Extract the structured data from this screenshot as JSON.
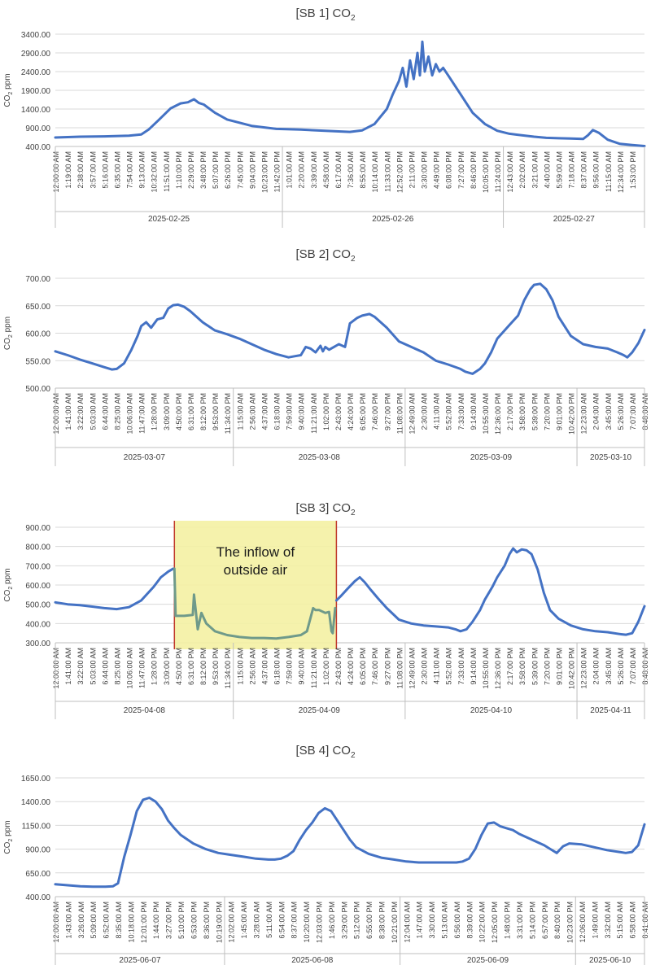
{
  "chart_data": [
    {
      "type": "line",
      "id": "sb1",
      "title_prefix": "[SB 1] CO",
      "title_sub": "2",
      "ylabel_prefix": "CO",
      "ylabel_sub": "2",
      "ylabel_suffix": " ppm",
      "ylim": [
        400,
        3400
      ],
      "yticks": [
        "3400.00",
        "2900.00",
        "2400.00",
        "1900.00",
        "1400.00",
        "900.00",
        "400.00"
      ],
      "ytick_values": [
        3400,
        2900,
        2400,
        1900,
        1400,
        900,
        400
      ],
      "xticks": [
        "12:00:00 AM",
        "1:19:00 AM",
        "2:38:00 AM",
        "3:57:00 AM",
        "5:16:00 AM",
        "6:35:00 AM",
        "7:54:00 AM",
        "9:13:00 AM",
        "10:32:00 AM",
        "11:51:00 AM",
        "1:10:00 PM",
        "2:29:00 PM",
        "3:48:00 PM",
        "5:07:00 PM",
        "6:26:00 PM",
        "7:45:00 PM",
        "9:04:00 PM",
        "10:23:00 PM",
        "11:42:00 PM",
        "1:01:00 AM",
        "2:20:00 AM",
        "3:39:00 AM",
        "4:58:00 AM",
        "6:17:00 AM",
        "7:36:00 AM",
        "8:55:00 AM",
        "10:14:00 AM",
        "11:33:00 AM",
        "12:52:00 PM",
        "2:11:00 PM",
        "3:30:00 PM",
        "4:49:00 PM",
        "6:08:00 PM",
        "7:27:00 PM",
        "8:46:00 PM",
        "10:05:00 PM",
        "11:24:00 PM",
        "12:43:00 AM",
        "2:02:00 AM",
        "3:21:00 AM",
        "4:40:00 AM",
        "5:59:00 AM",
        "7:18:00 AM",
        "8:37:00 AM",
        "9:56:00 AM",
        "11:15:00 AM",
        "12:34:00 PM",
        "1:53:00 PM"
      ],
      "dates": [
        "2025-02-25",
        "2025-02-26",
        "2025-02-27"
      ],
      "date_boundaries": [
        18.5,
        36.5
      ],
      "x_max": 48,
      "series": [
        {
          "name": "CO2",
          "x": [
            0,
            2,
            4,
            6,
            7,
            7.6,
            8.4,
            9.4,
            10.2,
            10.8,
            11.3,
            11.7,
            12.1,
            13,
            14,
            16,
            18,
            20,
            22,
            24,
            25,
            26,
            27,
            27.5,
            28,
            28.3,
            28.6,
            28.9,
            29.2,
            29.5,
            29.7,
            29.9,
            30.1,
            30.4,
            30.7,
            31,
            31.3,
            31.6,
            32,
            33,
            34,
            35,
            36,
            37,
            38,
            39,
            40,
            41,
            42,
            43,
            43.4,
            43.8,
            44.3,
            45,
            46,
            47,
            48
          ],
          "values": [
            640,
            660,
            670,
            690,
            720,
            850,
            1100,
            1420,
            1550,
            1580,
            1660,
            1560,
            1520,
            1300,
            1120,
            950,
            870,
            850,
            820,
            790,
            830,
            1000,
            1400,
            1800,
            2150,
            2500,
            2000,
            2700,
            2200,
            2900,
            2300,
            3200,
            2400,
            2800,
            2300,
            2600,
            2400,
            2500,
            2300,
            1800,
            1300,
            1000,
            820,
            740,
            700,
            660,
            630,
            620,
            610,
            600,
            700,
            840,
            760,
            580,
            470,
            440,
            410
          ]
        }
      ]
    },
    {
      "type": "line",
      "id": "sb2",
      "title_prefix": "[SB 2] CO",
      "title_sub": "2",
      "ylabel_prefix": "CO",
      "ylabel_sub": "2",
      "ylabel_suffix": " ppm",
      "ylim": [
        500,
        700
      ],
      "yticks": [
        "700.00",
        "650.00",
        "600.00",
        "550.00",
        "500.00"
      ],
      "ytick_values": [
        700,
        650,
        600,
        550,
        500
      ],
      "xticks": [
        "12:00:00 AM",
        "1:41:00 AM",
        "3:22:00 AM",
        "5:03:00 AM",
        "6:44:00 AM",
        "8:25:00 AM",
        "10:06:00 AM",
        "11:47:00 AM",
        "1:28:00 PM",
        "3:09:00 PM",
        "4:50:00 PM",
        "6:31:00 PM",
        "8:12:00 PM",
        "9:53:00 PM",
        "11:34:00 PM",
        "1:15:00 AM",
        "2:56:00 AM",
        "4:37:00 AM",
        "6:18:00 AM",
        "7:59:00 AM",
        "9:40:00 AM",
        "11:21:00 AM",
        "1:02:00 PM",
        "2:43:00 PM",
        "4:24:00 PM",
        "6:05:00 PM",
        "7:46:00 PM",
        "9:27:00 PM",
        "11:08:00 PM",
        "12:49:00 AM",
        "2:30:00 AM",
        "4:11:00 AM",
        "5:52:00 AM",
        "7:33:00 AM",
        "9:14:00 AM",
        "10:55:00 AM",
        "12:36:00 PM",
        "2:17:00 PM",
        "3:58:00 PM",
        "5:39:00 PM",
        "7:20:00 PM",
        "9:01:00 PM",
        "10:42:00 PM",
        "12:23:00 AM",
        "2:04:00 AM",
        "3:45:00 AM",
        "5:26:00 AM",
        "7:07:00 AM",
        "8:48:00 AM"
      ],
      "dates": [
        "2025-03-07",
        "2025-03-08",
        "2025-03-09",
        "2025-03-10"
      ],
      "date_boundaries": [
        14.5,
        28.5,
        42.5
      ],
      "x_max": 48,
      "series": [
        {
          "name": "CO2",
          "x": [
            0,
            1,
            2,
            3,
            4,
            4.6,
            5,
            5.6,
            6.2,
            6.7,
            7,
            7.4,
            7.8,
            8.3,
            8.8,
            9.2,
            9.6,
            10,
            10.5,
            11,
            12,
            13,
            14,
            15,
            16,
            17,
            18,
            19,
            19.5,
            20,
            20.4,
            20.8,
            21.2,
            21.6,
            21.8,
            22,
            22.3,
            22.7,
            23.1,
            23.6,
            24,
            24.6,
            25,
            25.6,
            26,
            27,
            28,
            29,
            30,
            31,
            32,
            33,
            33.4,
            34,
            34.6,
            35,
            35.5,
            36,
            37,
            37.7,
            38.2,
            38.7,
            39,
            39.5,
            40,
            40.5,
            41,
            42,
            43,
            44,
            45,
            45.8,
            46.3,
            46.6,
            47,
            47.5,
            48
          ],
          "values": [
            567,
            560,
            552,
            545,
            538,
            534,
            535,
            545,
            570,
            595,
            613,
            620,
            610,
            625,
            628,
            645,
            651,
            652,
            648,
            640,
            620,
            605,
            598,
            590,
            580,
            570,
            562,
            556,
            558,
            560,
            575,
            572,
            565,
            577,
            567,
            575,
            570,
            575,
            580,
            575,
            618,
            628,
            632,
            635,
            630,
            610,
            585,
            575,
            565,
            550,
            543,
            535,
            530,
            526,
            535,
            545,
            565,
            590,
            615,
            632,
            660,
            680,
            688,
            690,
            680,
            660,
            630,
            595,
            580,
            575,
            572,
            565,
            560,
            556,
            565,
            582,
            606
          ]
        }
      ]
    },
    {
      "type": "line",
      "id": "sb3",
      "title_prefix": "[SB 3] CO",
      "title_sub": "2",
      "ylabel_prefix": "CO",
      "ylabel_sub": "2",
      "ylabel_suffix": " ppm",
      "ylim": [
        300,
        900
      ],
      "yticks": [
        "900.00",
        "800.00",
        "700.00",
        "600.00",
        "500.00",
        "400.00",
        "300.00"
      ],
      "ytick_values": [
        900,
        800,
        700,
        600,
        500,
        400,
        300
      ],
      "xticks": [
        "12:00:00 AM",
        "1:41:00 AM",
        "3:22:00 AM",
        "5:03:00 AM",
        "6:44:00 AM",
        "8:25:00 AM",
        "10:06:00 AM",
        "11:47:00 AM",
        "1:28:00 PM",
        "3:09:00 PM",
        "4:50:00 PM",
        "6:31:00 PM",
        "8:12:00 PM",
        "9:53:00 PM",
        "11:34:00 PM",
        "1:15:00 AM",
        "2:56:00 AM",
        "4:37:00 AM",
        "6:18:00 AM",
        "7:59:00 AM",
        "9:40:00 AM",
        "11:21:00 AM",
        "1:02:00 PM",
        "2:43:00 PM",
        "4:24:00 PM",
        "6:05:00 PM",
        "7:46:00 PM",
        "9:27:00 PM",
        "11:08:00 PM",
        "12:49:00 AM",
        "2:30:00 AM",
        "4:11:00 AM",
        "5:52:00 AM",
        "7:33:00 AM",
        "9:14:00 AM",
        "10:55:00 AM",
        "12:36:00 PM",
        "2:17:00 PM",
        "3:58:00 PM",
        "5:39:00 PM",
        "7:20:00 PM",
        "9:01:00 PM",
        "10:42:00 PM",
        "12:23:00 AM",
        "2:04:00 AM",
        "3:45:00 AM",
        "5:26:00 AM",
        "7:07:00 AM",
        "8:48:00 AM"
      ],
      "dates": [
        "2025-04-08",
        "2025-04-09",
        "2025-04-10",
        "2025-04-11"
      ],
      "date_boundaries": [
        14.5,
        28.5,
        42.5
      ],
      "x_max": 48,
      "highlight": {
        "x_start": 9.7,
        "x_end": 22.9,
        "label_line1": "The inflow of",
        "label_line2": "outside air"
      },
      "series": [
        {
          "name": "CO2",
          "x": [
            0,
            1,
            2,
            3,
            4,
            5,
            6,
            7,
            8,
            8.6,
            9.2,
            9.6
          ],
          "values": [
            510,
            500,
            495,
            488,
            480,
            475,
            485,
            520,
            590,
            640,
            670,
            685
          ]
        },
        {
          "name": "CO2-inflow",
          "x": [
            9.7,
            9.8,
            10.5,
            11.2,
            11.3,
            11.5,
            11.6,
            11.9,
            12.3,
            13,
            14,
            15,
            16,
            17,
            18,
            19,
            20,
            20.5,
            21,
            21.2,
            21.5,
            22,
            22.3,
            22.5,
            22.6,
            22.8
          ],
          "values": [
            685,
            440,
            440,
            445,
            550,
            430,
            370,
            455,
            400,
            360,
            340,
            330,
            325,
            325,
            322,
            330,
            340,
            360,
            480,
            470,
            470,
            455,
            460,
            360,
            350,
            480
          ]
        },
        {
          "name": "CO2-after",
          "x": [
            22.9,
            23.3,
            23.8,
            24.4,
            24.8,
            25.2,
            25.7,
            26.3,
            27,
            28,
            29,
            30,
            31,
            32,
            32.6,
            33,
            33.5,
            34,
            34.6,
            35,
            35.6,
            36,
            36.6,
            37,
            37.3,
            37.6,
            38,
            38.4,
            38.8,
            39.3,
            39.8,
            40.3,
            41,
            42,
            43,
            44,
            45,
            46,
            46.5,
            47,
            47.5,
            48
          ],
          "values": [
            520,
            545,
            580,
            620,
            640,
            615,
            575,
            530,
            480,
            420,
            400,
            390,
            385,
            380,
            370,
            360,
            370,
            410,
            470,
            525,
            590,
            640,
            700,
            760,
            790,
            770,
            785,
            780,
            760,
            680,
            560,
            470,
            425,
            390,
            370,
            360,
            355,
            345,
            342,
            350,
            410,
            490
          ]
        }
      ]
    },
    {
      "type": "line",
      "id": "sb4",
      "title_prefix": "[SB 4] CO",
      "title_sub": "2",
      "ylabel_prefix": "CO",
      "ylabel_sub": "2",
      "ylabel_suffix": " ppm",
      "ylim": [
        400,
        1650
      ],
      "yticks": [
        "1650.00",
        "1400.00",
        "1150.00",
        "900.00",
        "650.00",
        "400.00"
      ],
      "ytick_values": [
        1650,
        1400,
        1150,
        900,
        650,
        400
      ],
      "xticks": [
        "12:00:00 AM",
        "1:43:00 AM",
        "3:26:00 AM",
        "5:09:00 AM",
        "6:52:00 AM",
        "8:35:00 AM",
        "10:18:00 AM",
        "12:01:00 PM",
        "1:44:00 PM",
        "3:27:00 PM",
        "5:10:00 PM",
        "6:53:00 PM",
        "8:36:00 PM",
        "10:19:00 PM",
        "12:02:00 AM",
        "1:45:00 AM",
        "3:28:00 AM",
        "5:11:00 AM",
        "6:54:00 AM",
        "8:37:00 AM",
        "10:20:00 AM",
        "12:03:00 PM",
        "1:46:00 PM",
        "3:29:00 PM",
        "5:12:00 PM",
        "6:55:00 PM",
        "8:38:00 PM",
        "10:21:00 PM",
        "12:04:00 AM",
        "1:47:00 AM",
        "3:30:00 AM",
        "5:13:00 AM",
        "6:56:00 AM",
        "8:39:00 AM",
        "10:22:00 AM",
        "12:05:00 PM",
        "1:48:00 PM",
        "3:31:00 PM",
        "5:14:00 PM",
        "6:57:00 PM",
        "8:40:00 PM",
        "10:23:00 PM",
        "12:06:00 AM",
        "1:49:00 AM",
        "3:32:00 AM",
        "5:15:00 AM",
        "6:58:00 AM",
        "8:41:00 AM"
      ],
      "dates": [
        "2025-06-07",
        "2025-06-08",
        "2025-06-09",
        "2025-06-10"
      ],
      "date_boundaries": [
        13.5,
        27.5,
        41.5
      ],
      "x_max": 47,
      "series": [
        {
          "name": "CO2",
          "x": [
            0,
            1,
            2,
            3,
            4,
            4.6,
            5,
            5.5,
            6,
            6.5,
            7,
            7.5,
            8,
            8.5,
            9,
            9.5,
            10,
            11,
            12,
            13,
            14,
            15,
            16,
            17,
            17.5,
            18,
            18.5,
            19,
            19.5,
            20,
            20.5,
            21,
            21.5,
            22,
            22.5,
            23,
            23.5,
            24,
            25,
            26,
            27,
            28,
            29,
            30,
            31,
            32,
            32.5,
            33,
            33.5,
            34,
            34.5,
            35,
            35.5,
            36,
            36.5,
            37,
            38,
            39,
            39.5,
            40,
            40.5,
            41,
            42,
            43,
            44,
            45,
            45.5,
            46,
            46.5,
            47
          ],
          "values": [
            530,
            520,
            510,
            505,
            505,
            510,
            540,
            820,
            1050,
            1300,
            1420,
            1440,
            1400,
            1320,
            1200,
            1120,
            1050,
            960,
            900,
            860,
            840,
            820,
            800,
            790,
            790,
            800,
            830,
            880,
            1000,
            1100,
            1180,
            1280,
            1330,
            1300,
            1200,
            1100,
            1000,
            920,
            850,
            810,
            790,
            770,
            760,
            760,
            760,
            760,
            770,
            800,
            900,
            1050,
            1170,
            1180,
            1140,
            1120,
            1100,
            1060,
            1000,
            940,
            900,
            860,
            930,
            960,
            950,
            920,
            890,
            870,
            860,
            870,
            940,
            1160
          ]
        }
      ]
    }
  ]
}
